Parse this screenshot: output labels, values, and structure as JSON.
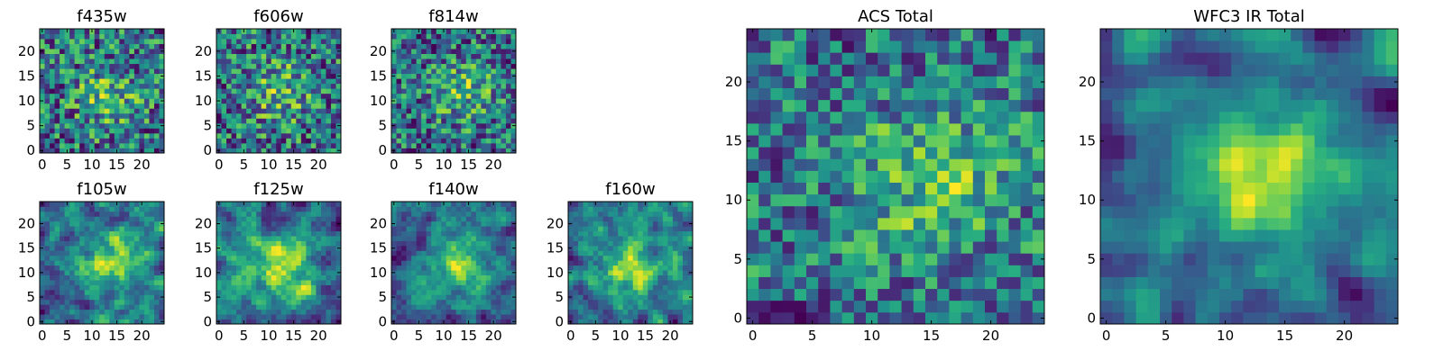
{
  "figure": {
    "background": "#ffffff",
    "colormap": "viridis"
  },
  "chart_data": [
    {
      "type": "heatmap",
      "title": "f435w",
      "grid_size": 25,
      "xlim": [
        0,
        24
      ],
      "ylim": [
        0,
        24
      ],
      "xticks": [
        "0",
        "5",
        "10",
        "15",
        "20"
      ],
      "yticks": [
        "0",
        "5",
        "10",
        "15",
        "20"
      ],
      "xlabel": "",
      "ylabel": "",
      "grid": false,
      "legend": "none",
      "pattern": "noise",
      "seed": 11,
      "center": [
        13,
        11
      ],
      "smooth": 0.0
    },
    {
      "type": "heatmap",
      "title": "f606w",
      "grid_size": 25,
      "xlim": [
        0,
        24
      ],
      "ylim": [
        0,
        24
      ],
      "xticks": [
        "0",
        "5",
        "10",
        "15",
        "20"
      ],
      "yticks": [
        "0",
        "5",
        "10",
        "15",
        "20"
      ],
      "xlabel": "",
      "ylabel": "",
      "grid": false,
      "legend": "none",
      "pattern": "noise",
      "seed": 23,
      "center": [
        12,
        12
      ],
      "smooth": 0.0
    },
    {
      "type": "heatmap",
      "title": "f814w",
      "grid_size": 25,
      "xlim": [
        0,
        24
      ],
      "ylim": [
        0,
        24
      ],
      "xticks": [
        "0",
        "5",
        "10",
        "15",
        "20"
      ],
      "yticks": [
        "0",
        "5",
        "10",
        "15",
        "20"
      ],
      "xlabel": "",
      "ylabel": "",
      "grid": false,
      "legend": "none",
      "pattern": "noise",
      "seed": 37,
      "center": [
        14,
        12
      ],
      "smooth": 0.1
    },
    {
      "type": "heatmap",
      "title": "f105w",
      "grid_size": 25,
      "xlim": [
        0,
        24
      ],
      "ylim": [
        0,
        24
      ],
      "xticks": [
        "0",
        "5",
        "10",
        "15",
        "20"
      ],
      "yticks": [
        "0",
        "5",
        "10",
        "15",
        "20"
      ],
      "xlabel": "",
      "ylabel": "",
      "grid": false,
      "legend": "none",
      "pattern": "smooth",
      "seed": 41,
      "center": [
        14,
        12
      ],
      "smooth": 0.6
    },
    {
      "type": "heatmap",
      "title": "f125w",
      "grid_size": 25,
      "xlim": [
        0,
        24
      ],
      "ylim": [
        0,
        24
      ],
      "xticks": [
        "0",
        "5",
        "10",
        "15",
        "20"
      ],
      "yticks": [
        "0",
        "5",
        "10",
        "15",
        "20"
      ],
      "xlabel": "",
      "ylabel": "",
      "grid": false,
      "legend": "none",
      "pattern": "smooth",
      "seed": 53,
      "center": [
        13,
        11
      ],
      "smooth": 0.6
    },
    {
      "type": "heatmap",
      "title": "f140w",
      "grid_size": 25,
      "xlim": [
        0,
        24
      ],
      "ylim": [
        0,
        24
      ],
      "xticks": [
        "0",
        "5",
        "10",
        "15",
        "20"
      ],
      "yticks": [
        "0",
        "5",
        "10",
        "15",
        "20"
      ],
      "xlabel": "",
      "ylabel": "",
      "grid": false,
      "legend": "none",
      "pattern": "smooth",
      "seed": 67,
      "center": [
        13,
        12
      ],
      "smooth": 0.6
    },
    {
      "type": "heatmap",
      "title": "f160w",
      "grid_size": 25,
      "xlim": [
        0,
        24
      ],
      "ylim": [
        0,
        24
      ],
      "xticks": [
        "0",
        "5",
        "10",
        "15",
        "20"
      ],
      "yticks": [
        "0",
        "5",
        "10",
        "15",
        "20"
      ],
      "xlabel": "",
      "ylabel": "",
      "grid": false,
      "legend": "none",
      "pattern": "smooth",
      "seed": 79,
      "center": [
        12,
        11
      ],
      "smooth": 0.6
    },
    {
      "type": "heatmap",
      "title": "ACS Total",
      "grid_size": 25,
      "xlim": [
        0,
        24
      ],
      "ylim": [
        0,
        24
      ],
      "xticks": [
        "0",
        "5",
        "10",
        "15",
        "20"
      ],
      "yticks": [
        "0",
        "5",
        "10",
        "15",
        "20"
      ],
      "xlabel": "",
      "ylabel": "",
      "grid": false,
      "legend": "none",
      "pattern": "noise",
      "seed": 97,
      "center": [
        15,
        12
      ],
      "smooth": 0.3
    },
    {
      "type": "heatmap",
      "title": "WFC3 IR Total",
      "grid_size": 25,
      "xlim": [
        0,
        24
      ],
      "ylim": [
        0,
        24
      ],
      "xticks": [
        "0",
        "5",
        "10",
        "15",
        "20"
      ],
      "yticks": [
        "0",
        "5",
        "10",
        "15",
        "20"
      ],
      "xlabel": "",
      "ylabel": "",
      "grid": false,
      "legend": "none",
      "pattern": "smooth",
      "seed": 113,
      "center": [
        13,
        12
      ],
      "smooth": 0.75
    }
  ]
}
